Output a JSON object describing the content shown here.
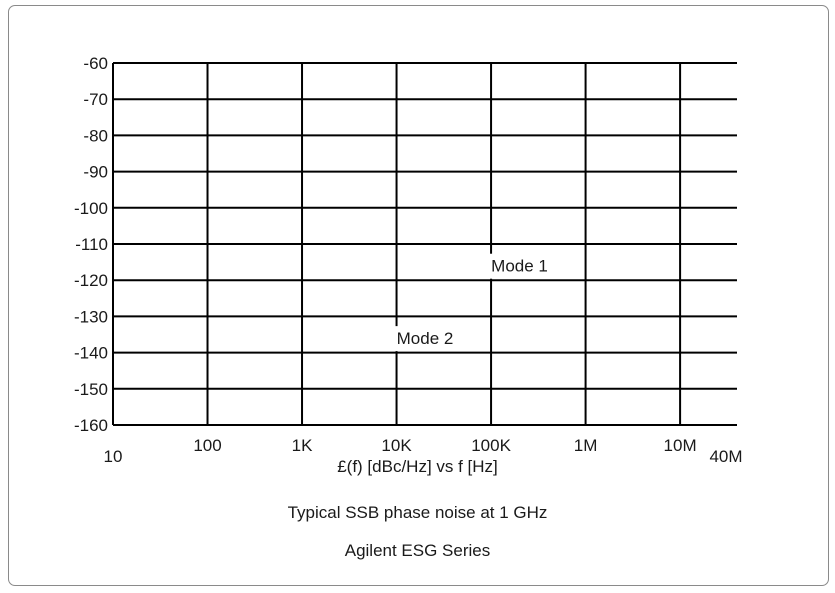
{
  "chart_data": {
    "type": "line",
    "xscale": "log",
    "x_tick_labels": [
      "10",
      "100",
      "1K",
      "10K",
      "100K",
      "1M",
      "10M",
      "40M"
    ],
    "x_tick_values": [
      10,
      100,
      1000,
      10000,
      100000,
      1000000,
      10000000,
      40000000
    ],
    "xlim": [
      10,
      40000000
    ],
    "ylim": [
      -160,
      -60
    ],
    "y_tick_values": [
      -60,
      -70,
      -80,
      -90,
      -100,
      -110,
      -120,
      -130,
      -140,
      -150,
      -160
    ],
    "grid": true,
    "xlabel": "£(f) [dBc/Hz] vs f [Hz]",
    "title": "Typical SSB phase noise at 1 GHz",
    "subtitle": "Agilent ESG Series",
    "annotations": [
      {
        "text": "Mode 1",
        "x": 200000,
        "y": -116
      },
      {
        "text": "Mode 2",
        "x": 20000,
        "y": -136
      }
    ],
    "series": []
  }
}
